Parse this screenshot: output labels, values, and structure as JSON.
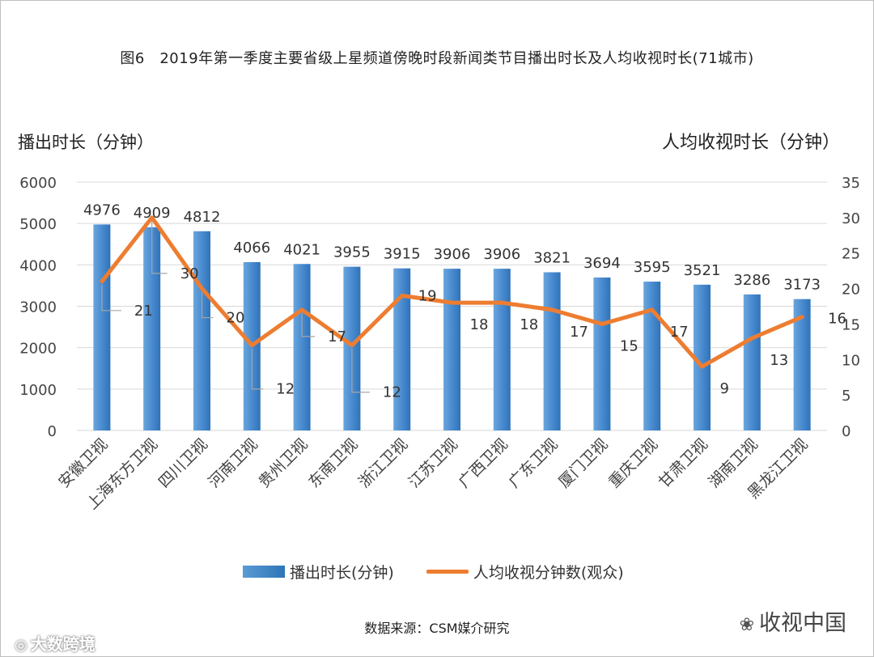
{
  "chart_data": {
    "type": "bar+line",
    "title": "图6　2019年第一季度主要省级上星频道傍晚时段新闻类节目播出时长及人均收视时长(71城市)",
    "ylabel_left": "播出时长（分钟）",
    "ylabel_right": "人均收视时长（分钟）",
    "ylim_left": [
      0,
      6000
    ],
    "ylim_right": [
      0,
      35
    ],
    "yticks_left": [
      0,
      1000,
      2000,
      3000,
      4000,
      5000,
      6000
    ],
    "yticks_right": [
      0,
      5,
      10,
      15,
      20,
      25,
      30,
      35
    ],
    "grid": true,
    "legend_position": "bottom",
    "categories": [
      "安徽卫视",
      "上海东方卫视",
      "四川卫视",
      "河南卫视",
      "贵州卫视",
      "东南卫视",
      "浙江卫视",
      "江苏卫视",
      "广西卫视",
      "广东卫视",
      "厦门卫视",
      "重庆卫视",
      "甘肃卫视",
      "湖南卫视",
      "黑龙江卫视"
    ],
    "series": [
      {
        "name": "播出时长(分钟)",
        "type": "bar",
        "axis": "left",
        "color": "#4a8bd0",
        "values": [
          4976,
          4909,
          4812,
          4066,
          4021,
          3955,
          3915,
          3906,
          3906,
          3821,
          3694,
          3595,
          3521,
          3286,
          3173
        ]
      },
      {
        "name": "人均收视分钟数(观众)",
        "type": "line",
        "axis": "right",
        "color": "#ed7d31",
        "values": [
          21,
          30,
          20,
          12,
          17,
          12,
          19,
          18,
          18,
          17,
          15,
          17,
          9,
          13,
          16
        ]
      }
    ]
  },
  "source": "数据来源：CSM媒介研究",
  "watermarks": {
    "left": "大数跨境",
    "right": "收视中国",
    "left_icon": "logo-icon",
    "right_icon": "wechat-icon"
  }
}
